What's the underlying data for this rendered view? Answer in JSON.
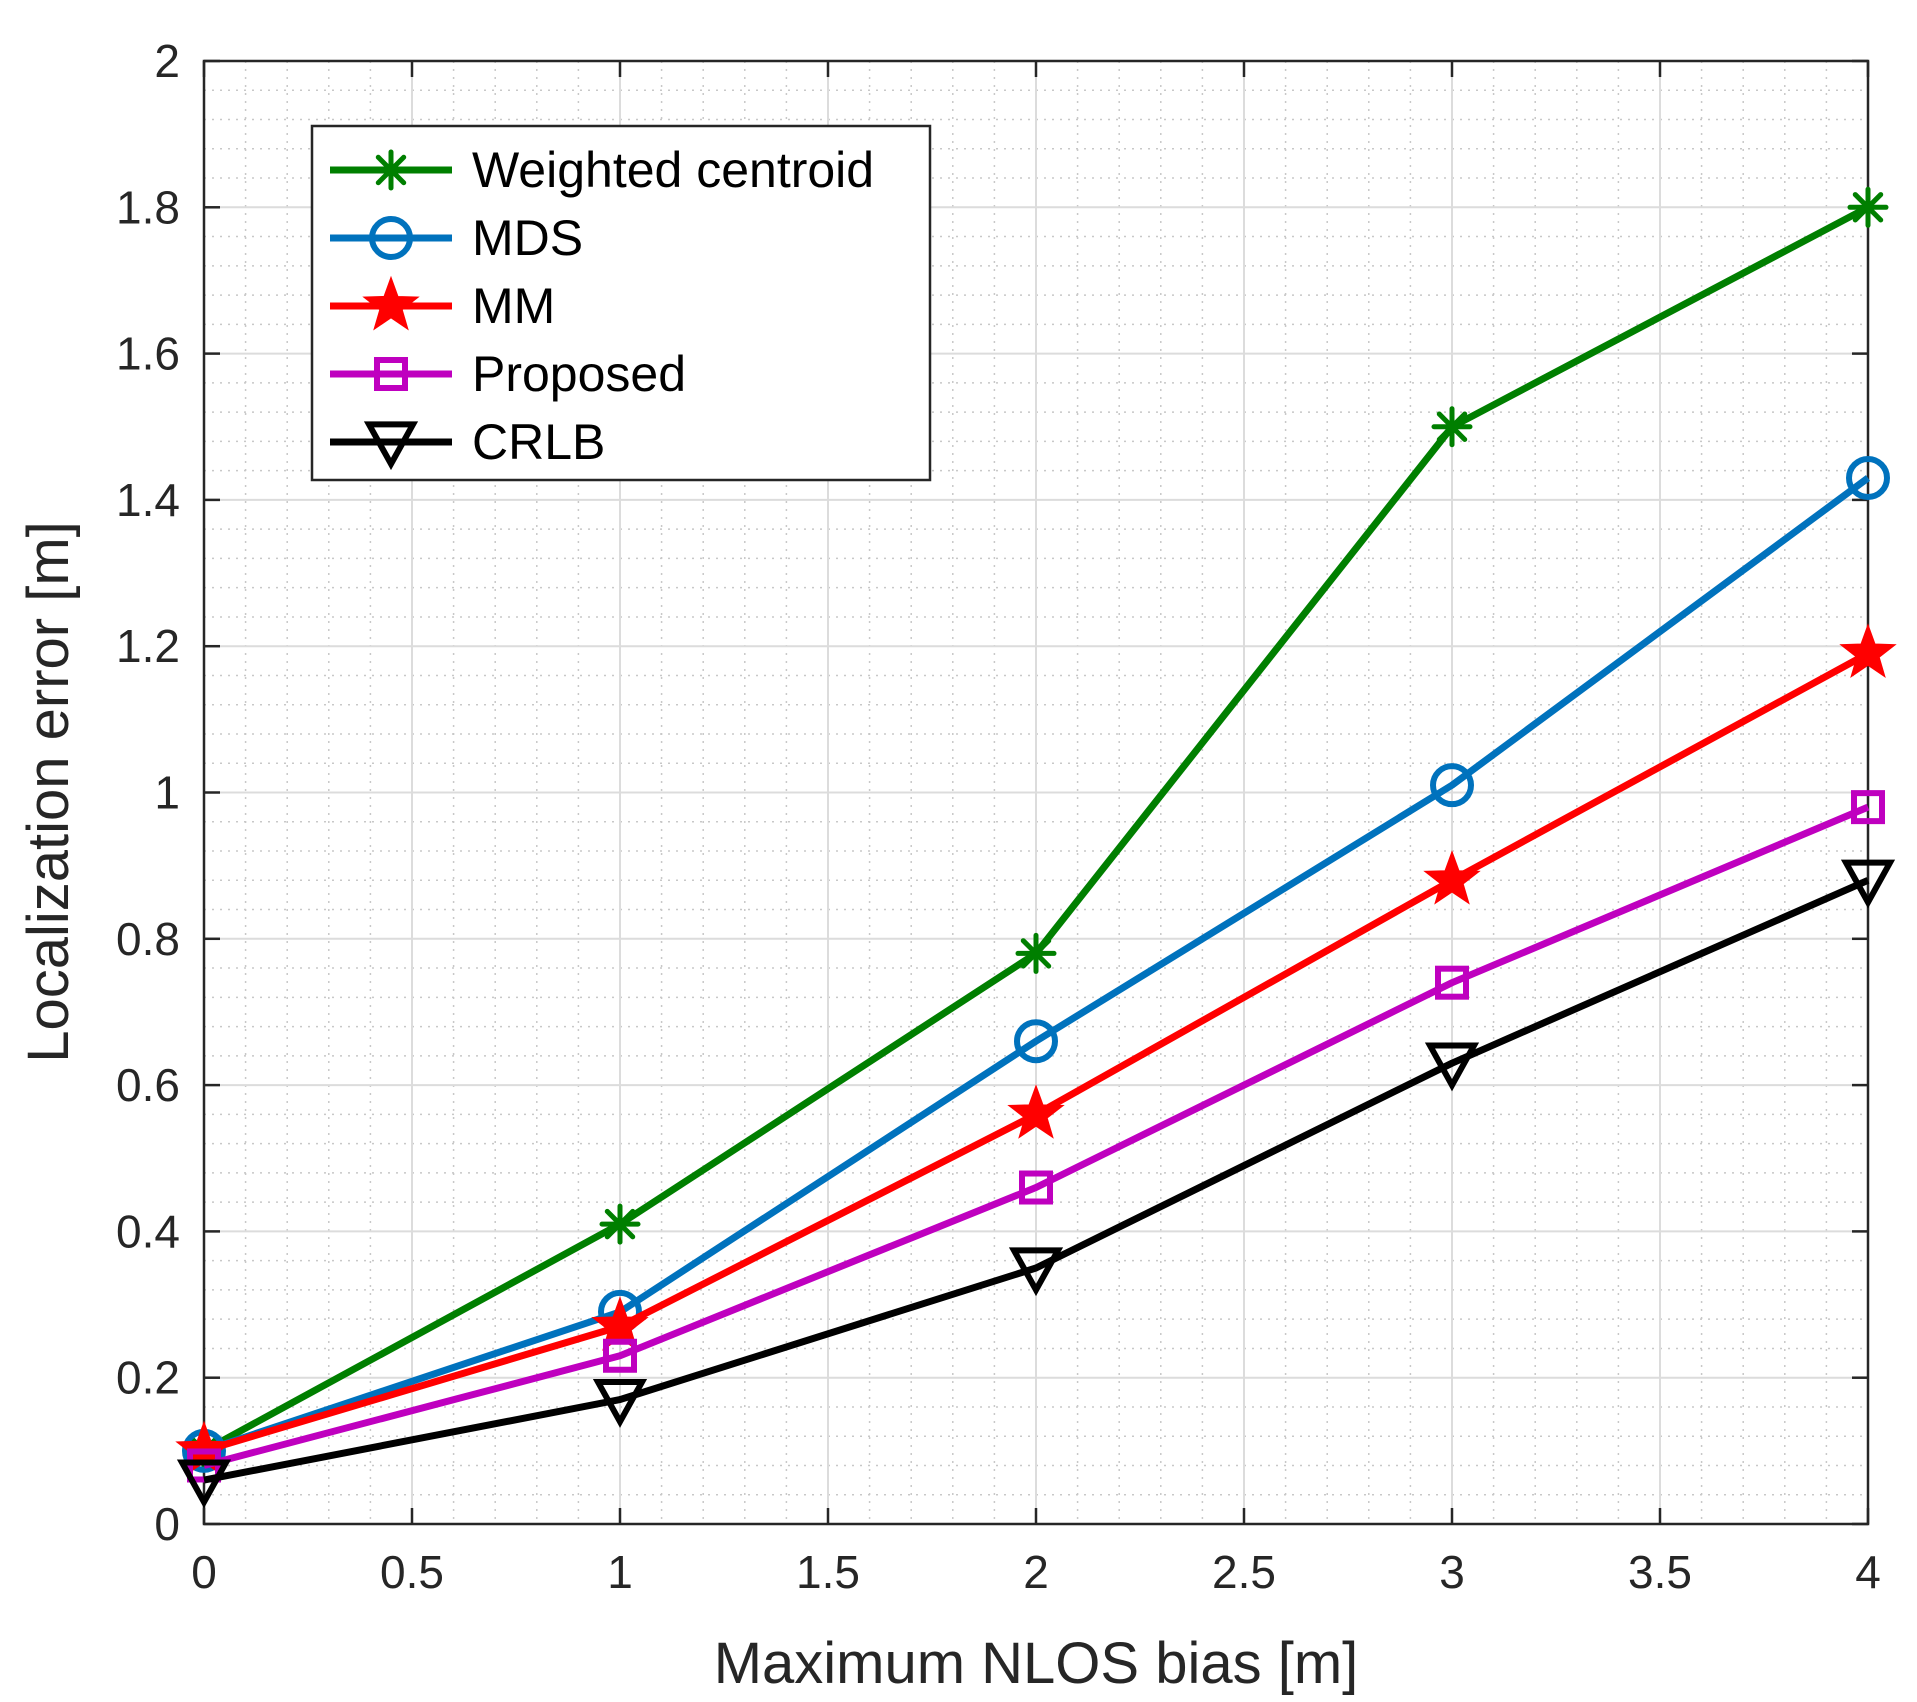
{
  "chart_data": {
    "type": "line",
    "title": "",
    "xlabel": "Maximum NLOS bias [m]",
    "ylabel": "Localization error [m]",
    "xlim": [
      0,
      4
    ],
    "ylim": [
      0,
      2
    ],
    "xticks": [
      "0",
      "0.5",
      "1",
      "1.5",
      "2",
      "2.5",
      "3",
      "3.5",
      "4"
    ],
    "yticks": [
      "0",
      "0.2",
      "0.4",
      "0.6",
      "0.8",
      "1",
      "1.2",
      "1.4",
      "1.6",
      "1.8",
      "2"
    ],
    "grid": true,
    "minor_grid": true,
    "legend_position": "top-left",
    "x": [
      0,
      1,
      2,
      3,
      4
    ],
    "series": [
      {
        "name": "Weighted centroid",
        "color": "#007f00",
        "marker": "asterisk",
        "values": [
          0.1,
          0.41,
          0.78,
          1.5,
          1.8
        ]
      },
      {
        "name": "MDS",
        "color": "#0072bd",
        "marker": "circle",
        "values": [
          0.1,
          0.29,
          0.66,
          1.01,
          1.43
        ]
      },
      {
        "name": "MM",
        "color": "#ff0000",
        "marker": "star",
        "values": [
          0.1,
          0.27,
          0.56,
          0.88,
          1.19
        ]
      },
      {
        "name": "Proposed",
        "color": "#bf00bf",
        "marker": "square",
        "values": [
          0.08,
          0.23,
          0.46,
          0.74,
          0.98
        ]
      },
      {
        "name": "CRLB",
        "color": "#000000",
        "marker": "triangle-down",
        "values": [
          0.06,
          0.17,
          0.35,
          0.63,
          0.88
        ]
      }
    ]
  }
}
